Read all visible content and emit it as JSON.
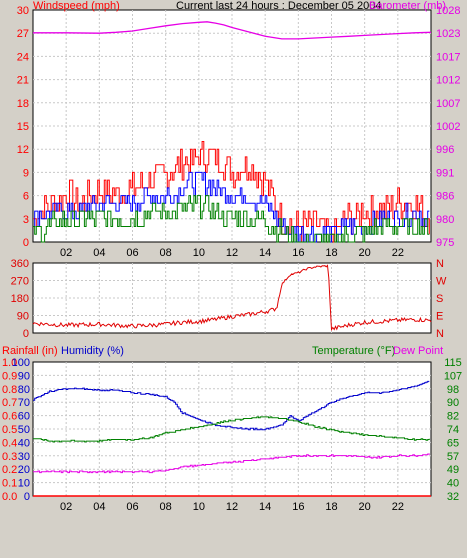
{
  "title": "Current last 24 hours : December 05 2004",
  "colors": {
    "background": "#d4d0c8",
    "plot": "#ffffff",
    "grid": "#c8c8c8",
    "wind": "#ff0000",
    "wind_avg": "#0000ff",
    "wind_min": "#008000",
    "barometer": "#e600e6",
    "direction": "#e00000",
    "humidity": "#0000cc",
    "temperature": "#008000",
    "dew_point": "#e600e6",
    "rain": "#ff0000"
  },
  "chart_data": [
    {
      "name": "wind-barometer",
      "type": "line",
      "left_axis_label": "Windspeed (mph)",
      "right_axis_label": "Barometer (mb)",
      "left_ticks": [
        "0",
        "3",
        "6",
        "9",
        "12",
        "15",
        "18",
        "21",
        "24",
        "27",
        "30"
      ],
      "right_ticks": [
        "975",
        "980",
        "986",
        "991",
        "996",
        "1002",
        "1007",
        "1012",
        "1017",
        "1023",
        "1028"
      ],
      "x_ticks": [
        "02",
        "04",
        "06",
        "08",
        "10",
        "12",
        "14",
        "16",
        "18",
        "20",
        "22"
      ],
      "x_range_hours": [
        0,
        24
      ],
      "left_range": [
        0,
        30
      ],
      "right_range": [
        975,
        1028
      ],
      "series": [
        {
          "key": "barometer",
          "axis": "right",
          "x": [
            0,
            2,
            4,
            5,
            6,
            7,
            8,
            9,
            10,
            10.5,
            11,
            11.5,
            12,
            13,
            14,
            15,
            16,
            17,
            18,
            19,
            20,
            21,
            22,
            23,
            24
          ],
          "values": [
            1022.8,
            1022.8,
            1022.7,
            1022.9,
            1023.2,
            1023.8,
            1024.4,
            1024.9,
            1025.2,
            1025.3,
            1025.0,
            1024.6,
            1024.0,
            1023.0,
            1022.0,
            1021.4,
            1021.4,
            1021.6,
            1021.8,
            1022.0,
            1022.2,
            1022.4,
            1022.6,
            1022.8,
            1022.9
          ]
        },
        {
          "key": "wind_gust",
          "axis": "left",
          "x": [
            0,
            1,
            2,
            3,
            4,
            5,
            6,
            7,
            8,
            9,
            10,
            11,
            12,
            13,
            14,
            15,
            16,
            17,
            18,
            19,
            20,
            21,
            22,
            23,
            24
          ],
          "values": [
            3,
            5,
            6,
            5,
            7,
            6,
            7,
            8,
            9,
            10,
            11,
            11,
            9,
            10,
            8,
            3,
            2,
            2,
            1,
            3,
            4,
            4,
            5,
            5,
            3
          ]
        },
        {
          "key": "wind_avg",
          "axis": "left",
          "x": [
            0,
            1,
            2,
            3,
            4,
            5,
            6,
            7,
            8,
            9,
            10,
            11,
            12,
            13,
            14,
            15,
            16,
            17,
            18,
            19,
            20,
            21,
            22,
            23,
            24
          ],
          "values": [
            3,
            4,
            4,
            4,
            5,
            5,
            5,
            6,
            6,
            7,
            8,
            7,
            6,
            6,
            5,
            2,
            1,
            1,
            1,
            2,
            2,
            3,
            3,
            4,
            3
          ]
        },
        {
          "key": "wind_min",
          "axis": "left",
          "x": [
            0,
            1,
            2,
            3,
            4,
            5,
            6,
            7,
            8,
            9,
            10,
            11,
            12,
            13,
            14,
            15,
            16,
            17,
            18,
            19,
            20,
            21,
            22,
            23,
            24
          ],
          "values": [
            1,
            2,
            3,
            3,
            3,
            3,
            3,
            4,
            4,
            4,
            5,
            4,
            3,
            3,
            3,
            1,
            0,
            0,
            0,
            1,
            1,
            2,
            2,
            2,
            2
          ]
        }
      ]
    },
    {
      "name": "wind-direction",
      "type": "line",
      "left_ticks": [
        "0",
        "90",
        "180",
        "270",
        "360"
      ],
      "right_ticks": [
        "N",
        "E",
        "S",
        "W",
        "N"
      ],
      "x_range_hours": [
        0,
        24
      ],
      "left_range": [
        0,
        360
      ],
      "series": [
        {
          "key": "direction",
          "x": [
            0,
            2,
            4,
            6,
            8,
            9,
            10,
            11,
            12,
            13,
            14,
            14.5,
            14.7,
            15,
            15.5,
            16,
            16.5,
            17,
            17.8,
            18,
            19,
            20,
            21,
            22,
            23,
            24
          ],
          "values": [
            50,
            40,
            45,
            35,
            45,
            55,
            60,
            70,
            85,
            95,
            110,
            120,
            130,
            250,
            300,
            310,
            330,
            340,
            345,
            20,
            40,
            55,
            60,
            65,
            70,
            65
          ]
        }
      ]
    },
    {
      "name": "humidity-temperature",
      "type": "line",
      "left_axis_label": "Rainfall (in)",
      "left2_axis_label": "Humidity (%)",
      "right_axis_label": "Temperature (°F)",
      "right2_axis_label": "Dew Point",
      "rain_ticks": [
        "0.0",
        "0.1",
        "0.2",
        "0.3",
        "0.4",
        "0.5",
        "0.6",
        "0.7",
        "0.8",
        "0.9",
        "1.0"
      ],
      "humidity_ticks": [
        "0",
        "10",
        "20",
        "30",
        "40",
        "50",
        "60",
        "70",
        "80",
        "90",
        "100"
      ],
      "temp_ticks": [
        "32",
        "40",
        "49",
        "57",
        "65",
        "74",
        "82",
        "90",
        "98",
        "107",
        "115"
      ],
      "x_ticks": [
        "02",
        "04",
        "06",
        "08",
        "10",
        "12",
        "14",
        "16",
        "18",
        "20",
        "22"
      ],
      "x_range_hours": [
        0,
        24
      ],
      "humidity_range": [
        0,
        100
      ],
      "temp_range": [
        32,
        115
      ],
      "series": [
        {
          "key": "humidity",
          "axis": "left",
          "x": [
            0,
            1,
            2,
            3,
            4,
            5,
            6,
            7,
            8,
            8.5,
            9,
            10,
            11,
            12,
            13,
            14,
            15,
            15.5,
            16,
            17,
            18,
            19,
            20,
            21,
            22,
            23,
            24
          ],
          "values": [
            72,
            78,
            80,
            80,
            79,
            79,
            77,
            76,
            74,
            70,
            62,
            57,
            53,
            51,
            50,
            50,
            53,
            60,
            56,
            63,
            70,
            74,
            77,
            77,
            79,
            82,
            86
          ]
        },
        {
          "key": "temperature",
          "axis": "right",
          "x": [
            0,
            1,
            2,
            3,
            4,
            5,
            6,
            7,
            8,
            9,
            10,
            11,
            12,
            13,
            14,
            15,
            16,
            17,
            18,
            19,
            20,
            21,
            22,
            23,
            24
          ],
          "values": [
            68,
            66,
            66,
            66,
            66,
            67,
            67,
            68,
            71,
            73,
            75,
            77,
            79,
            80,
            81,
            80,
            78,
            75,
            73,
            71,
            70,
            69,
            68,
            67,
            67
          ]
        },
        {
          "key": "dew_point",
          "axis": "right",
          "x": [
            0,
            1,
            2,
            3,
            4,
            5,
            6,
            7,
            8,
            9,
            10,
            11,
            12,
            13,
            14,
            15,
            16,
            17,
            18,
            19,
            20,
            21,
            22,
            23,
            24
          ],
          "values": [
            47,
            47,
            47,
            47,
            47,
            47,
            47,
            47,
            48,
            50,
            51,
            52,
            53,
            54,
            55,
            56,
            57,
            57,
            57,
            57,
            56,
            56,
            57,
            57,
            58
          ]
        },
        {
          "key": "rain",
          "axis": "left",
          "x": [
            0,
            24
          ],
          "values": [
            0,
            0
          ]
        }
      ]
    }
  ]
}
